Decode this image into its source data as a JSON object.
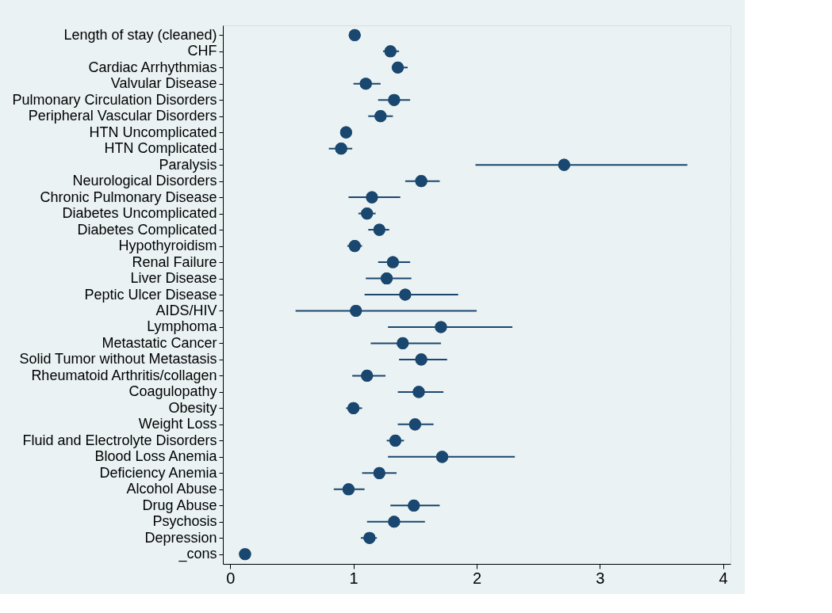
{
  "chart_data": {
    "type": "scatter",
    "orientation": "horizontal",
    "color": "#1a476f",
    "marker": "circle",
    "grid": "y",
    "legend": false,
    "categories": [
      "Length of stay (cleaned)",
      "CHF",
      "Cardiac Arrhythmias",
      "Valvular Disease",
      "Pulmonary Circulation Disorders",
      "Peripheral Vascular Disorders",
      "HTN Uncomplicated",
      "HTN Complicated",
      "Paralysis",
      "Neurological Disorders",
      "Chronic Pulmonary Disease",
      "Diabetes Uncomplicated",
      "Diabetes Complicated",
      "Hypothyroidism",
      "Renal Failure",
      "Liver Disease",
      "Peptic Ulcer Disease",
      "AIDS/HIV",
      "Lymphoma",
      "Metastatic Cancer",
      "Solid Tumor without Metastasis",
      "Rheumatoid Arthritis/collagen",
      "Coagulopathy",
      "Obesity",
      "Weight Loss",
      "Fluid and Electrolyte Disorders",
      "Blood Loss Anemia",
      "Deficiency Anemia",
      "Alcohol Abuse",
      "Drug Abuse",
      "Psychosis",
      "Depression",
      "_cons"
    ],
    "values": [
      1.01,
      1.3,
      1.36,
      1.1,
      1.33,
      1.22,
      0.94,
      0.9,
      2.71,
      1.55,
      1.15,
      1.11,
      1.21,
      1.01,
      1.32,
      1.27,
      1.42,
      1.02,
      1.71,
      1.4,
      1.55,
      1.11,
      1.53,
      1.0,
      1.5,
      1.34,
      1.72,
      1.21,
      0.96,
      1.49,
      1.33,
      1.13,
      0.12
    ],
    "errors": [
      null,
      [
        1.24,
        1.37
      ],
      [
        1.31,
        1.44
      ],
      [
        1.0,
        1.22
      ],
      [
        1.2,
        1.46
      ],
      [
        1.12,
        1.32
      ],
      null,
      [
        0.8,
        0.99
      ],
      [
        1.99,
        3.71
      ],
      [
        1.42,
        1.7
      ],
      [
        0.96,
        1.38
      ],
      [
        1.04,
        1.18
      ],
      [
        1.12,
        1.29
      ],
      [
        0.95,
        1.07
      ],
      [
        1.2,
        1.46
      ],
      [
        1.1,
        1.47
      ],
      [
        1.09,
        1.85
      ],
      [
        0.53,
        2.0
      ],
      [
        1.28,
        2.29
      ],
      [
        1.14,
        1.71
      ],
      [
        1.37,
        1.76
      ],
      [
        0.99,
        1.26
      ],
      [
        1.36,
        1.73
      ],
      [
        0.94,
        1.07
      ],
      [
        1.36,
        1.65
      ],
      [
        1.27,
        1.41
      ],
      [
        1.28,
        2.31
      ],
      [
        1.07,
        1.35
      ],
      [
        0.84,
        1.09
      ],
      [
        1.3,
        1.7
      ],
      [
        1.11,
        1.58
      ],
      [
        1.06,
        1.19
      ],
      null
    ],
    "xlim": [
      -0.06,
      4.06
    ],
    "xticks": [
      0,
      1,
      2,
      3,
      4
    ]
  }
}
